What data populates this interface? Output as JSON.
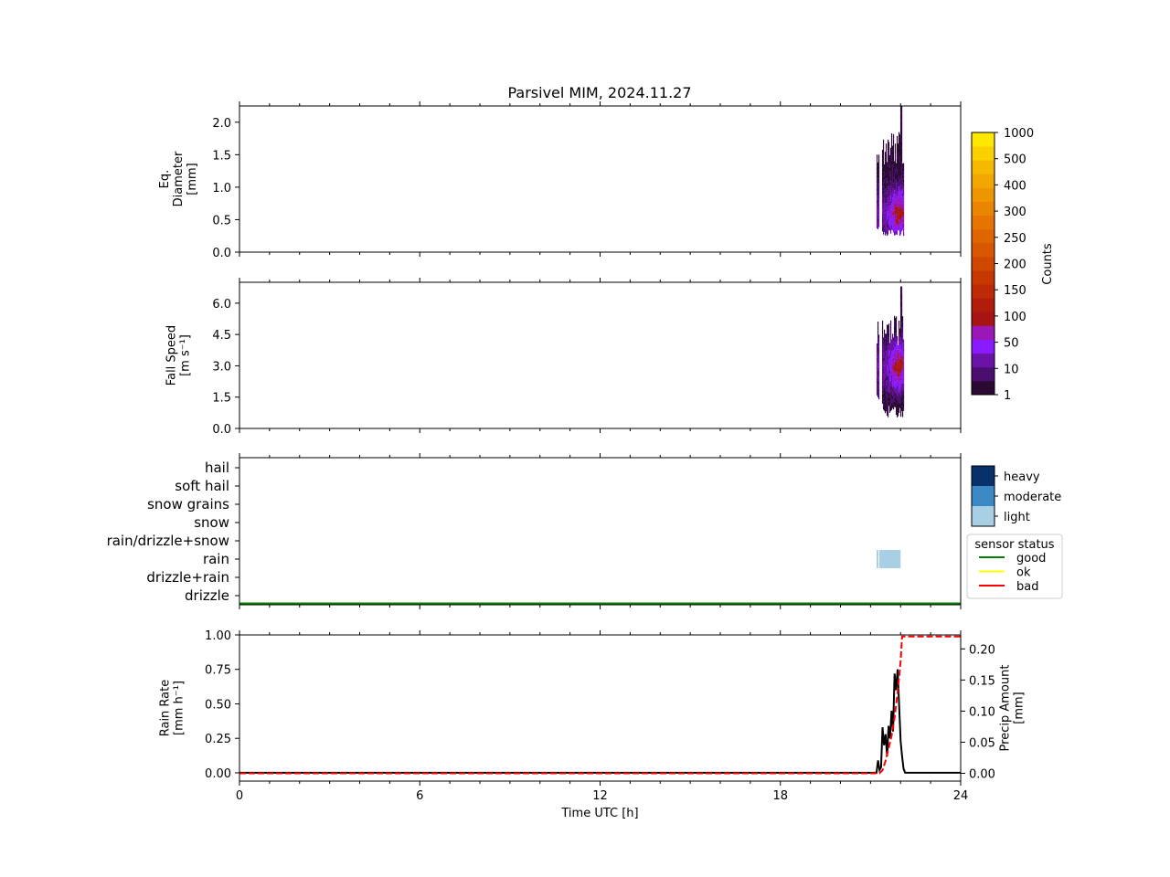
{
  "title": "Parsivel MIM, 2024.11.27",
  "colors": {
    "counts_scale": [
      "#2a0a33",
      "#4a0f6e",
      "#6b12a8",
      "#8a1aff",
      "#9b17b8",
      "#a81414",
      "#b21c0a",
      "#bd2a05",
      "#c73800",
      "#d04700",
      "#d85600",
      "#df6500",
      "#e57500",
      "#ea8500",
      "#ee9600",
      "#f2a700",
      "#f6b900",
      "#fbd000",
      "#ffe800"
    ],
    "intensity": {
      "heavy": "#08306b",
      "moderate": "#3a88c4",
      "light": "#a9cfe5"
    },
    "status": {
      "good": "#008000",
      "ok": "#ffff00",
      "bad": "#ff0000"
    },
    "rate_line": "#000000",
    "accum_line": "#ff0000"
  },
  "chart_data": [
    {
      "type": "heatmap",
      "panel": "diameter",
      "ylabel_lines": [
        "Eq.",
        "Diameter",
        "[mm]"
      ],
      "xlim": [
        0,
        24
      ],
      "ylim": [
        0,
        2.25
      ],
      "yticks": [
        "0.0",
        "0.5",
        "1.0",
        "1.5",
        "2.0"
      ],
      "ytick_values": [
        0,
        0.5,
        1.0,
        1.5,
        2.0
      ],
      "event": {
        "x_range": [
          21.2,
          22.1
        ],
        "y_range": [
          0.25,
          2.25
        ],
        "peak_y": 0.6
      }
    },
    {
      "type": "heatmap",
      "panel": "fall_speed",
      "ylabel_lines": [
        "Fall Speed",
        "[m s⁻¹]"
      ],
      "xlim": [
        0,
        24
      ],
      "ylim": [
        0,
        7.0
      ],
      "yticks": [
        "0.0",
        "1.5",
        "3.0",
        "4.5",
        "6.0"
      ],
      "ytick_values": [
        0,
        1.5,
        3.0,
        4.5,
        6.0
      ],
      "event": {
        "x_range": [
          21.2,
          22.1
        ],
        "y_range": [
          0.5,
          6.8
        ],
        "peak_y": 3.0
      }
    },
    {
      "type": "heatmap",
      "panel": "precip_type",
      "categories": [
        "hail",
        "soft hail",
        "snow grains",
        "snow",
        "rain/drizzle+snow",
        "rain",
        "drizzle+rain",
        "drizzle"
      ],
      "xlim": [
        0,
        24
      ],
      "events": [
        {
          "category": "rain",
          "x_range": [
            21.2,
            22.0
          ],
          "intensity": "light"
        }
      ],
      "status_line": {
        "status": "good",
        "x_range": [
          0,
          24
        ]
      }
    },
    {
      "type": "line",
      "panel": "rain",
      "xlabel": "Time UTC [h]",
      "ylabel_lines": [
        "Rain Rate",
        "[mm h⁻¹]"
      ],
      "y2label_lines": [
        "Precip Amount",
        "[mm]"
      ],
      "xlim": [
        0,
        24
      ],
      "xticks": [
        "0",
        "6",
        "12",
        "18",
        "24"
      ],
      "xtick_values": [
        0,
        6,
        12,
        18,
        24
      ],
      "ylim": [
        -0.06,
        1.0
      ],
      "yticks": [
        "0.00",
        "0.25",
        "0.50",
        "0.75",
        "1.00"
      ],
      "ytick_values": [
        0,
        0.25,
        0.5,
        0.75,
        1.0
      ],
      "y2lim": [
        -0.0125,
        0.2225
      ],
      "y2ticks": [
        "0.00",
        "0.05",
        "0.10",
        "0.15",
        "0.20"
      ],
      "y2tick_values": [
        0,
        0.05,
        0.1,
        0.15,
        0.2
      ],
      "series": [
        {
          "role": "rate",
          "axis": "left",
          "style": "solid",
          "x": [
            0,
            21.2,
            21.25,
            21.3,
            21.35,
            21.4,
            21.45,
            21.5,
            21.55,
            21.6,
            21.65,
            21.7,
            21.75,
            21.8,
            21.85,
            21.9,
            21.95,
            22.0,
            22.05,
            22.1,
            22.15,
            22.2,
            24
          ],
          "y": [
            0,
            0,
            0.09,
            0.02,
            0.04,
            0.33,
            0.2,
            0.28,
            0.12,
            0.34,
            0.25,
            0.45,
            0.3,
            0.72,
            0.6,
            0.75,
            0.5,
            0.23,
            0.12,
            0.03,
            0.0,
            0.0,
            0.0
          ]
        },
        {
          "role": "accumulation",
          "axis": "right",
          "style": "dashed",
          "x": [
            0,
            21.3,
            21.4,
            21.5,
            21.6,
            21.7,
            21.8,
            21.9,
            22.0,
            22.05,
            24
          ],
          "y": [
            0,
            0,
            0.005,
            0.02,
            0.04,
            0.06,
            0.09,
            0.13,
            0.18,
            0.22,
            0.22
          ]
        }
      ]
    }
  ],
  "colorbar": {
    "label": "Counts",
    "ticks": [
      "1",
      "10",
      "50",
      "100",
      "150",
      "200",
      "250",
      "300",
      "400",
      "500",
      "1000"
    ]
  },
  "intensity_legend": {
    "items": [
      "heavy",
      "moderate",
      "light"
    ]
  },
  "status_legend": {
    "title": "sensor status",
    "items": [
      "good",
      "ok",
      "bad"
    ]
  }
}
